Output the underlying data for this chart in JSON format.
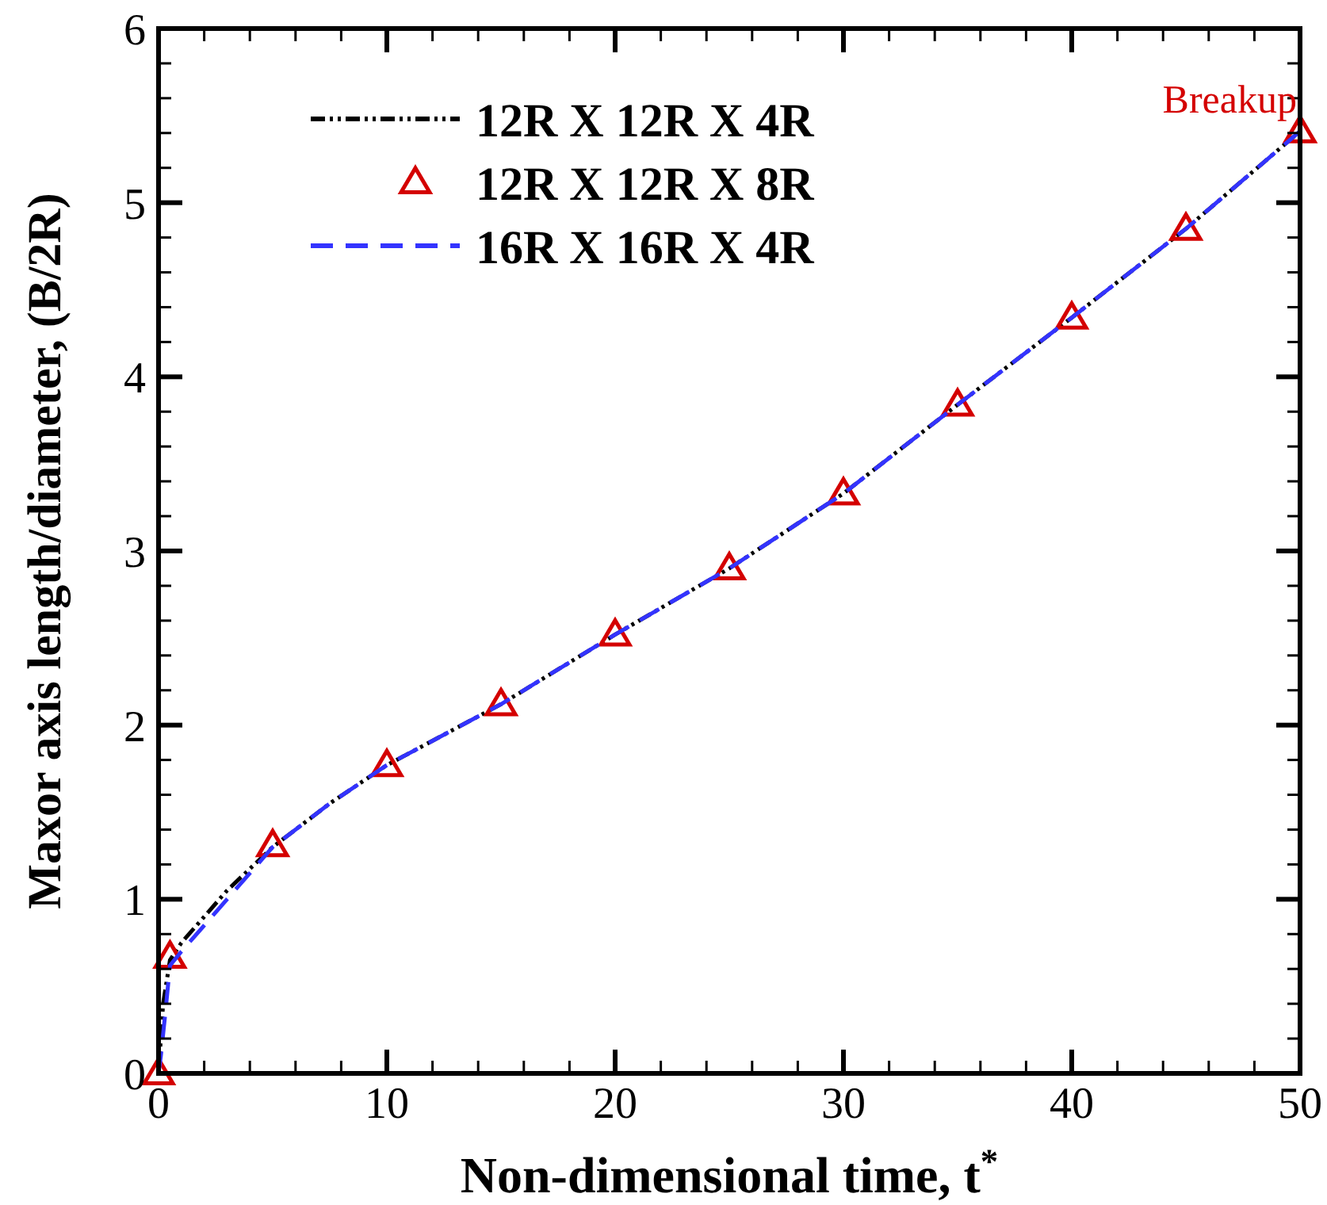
{
  "chart_data": {
    "type": "line",
    "xlabel": "Non-dimensional time, t$^{*}$",
    "ylabel": "Maxor axis length/diameter, (B/2R)",
    "xlim": [
      0,
      50
    ],
    "ylim": [
      0,
      6
    ],
    "xticks": [
      0,
      {
        "value": 2,
        "label": null
      },
      {
        "value": 4,
        "label": null
      },
      {
        "value": 6,
        "label": null
      },
      {
        "value": 8,
        "label": null
      },
      10,
      {
        "value": 12,
        "label": null
      },
      {
        "value": 14,
        "label": null
      },
      {
        "value": 16,
        "label": null
      },
      {
        "value": 18,
        "label": null
      },
      20,
      {
        "value": 22,
        "label": null
      },
      {
        "value": 24,
        "label": null
      },
      {
        "value": 26,
        "label": null
      },
      {
        "value": 28,
        "label": null
      },
      30,
      {
        "value": 32,
        "label": null
      },
      {
        "value": 34,
        "label": null
      },
      {
        "value": 36,
        "label": null
      },
      {
        "value": 38,
        "label": null
      },
      40,
      {
        "value": 42,
        "label": null
      },
      {
        "value": 44,
        "label": null
      },
      {
        "value": 46,
        "label": null
      },
      {
        "value": 48,
        "label": null
      },
      50
    ],
    "yticks": [
      0,
      {
        "value": 0.2,
        "label": null
      },
      {
        "value": 0.4,
        "label": null
      },
      {
        "value": 0.6,
        "label": null
      },
      {
        "value": 0.8,
        "label": null
      },
      1,
      {
        "value": 1.2,
        "label": null
      },
      {
        "value": 1.4,
        "label": null
      },
      {
        "value": 1.6,
        "label": null
      },
      {
        "value": 1.8,
        "label": null
      },
      2,
      {
        "value": 2.2,
        "label": null
      },
      {
        "value": 2.4,
        "label": null
      },
      {
        "value": 2.6,
        "label": null
      },
      {
        "value": 2.8,
        "label": null
      },
      3,
      {
        "value": 3.2,
        "label": null
      },
      {
        "value": 3.4,
        "label": null
      },
      {
        "value": 3.6,
        "label": null
      },
      {
        "value": 3.8,
        "label": null
      },
      4,
      {
        "value": 4.2,
        "label": null
      },
      {
        "value": 4.4,
        "label": null
      },
      {
        "value": 4.6,
        "label": null
      },
      {
        "value": 4.8,
        "label": null
      },
      5,
      {
        "value": 5.2,
        "label": null
      },
      {
        "value": 5.4,
        "label": null
      },
      {
        "value": 5.6,
        "label": null
      },
      {
        "value": 5.8,
        "label": null
      },
      6
    ],
    "legend": "top left",
    "grid": false,
    "series": [
      {
        "name": "12R X 12R X 4R",
        "color": "#000000",
        "line_style": "dotted",
        "marker": "none",
        "x": [
          0,
          0.2,
          0.5,
          1,
          2,
          3,
          5,
          7.5,
          10,
          15,
          20,
          25,
          30,
          35,
          40,
          45,
          50
        ],
        "values": [
          0,
          0.4,
          0.65,
          0.75,
          0.9,
          1.05,
          1.3,
          1.55,
          1.77,
          2.12,
          2.52,
          2.9,
          3.33,
          3.84,
          4.34,
          4.85,
          5.41
        ]
      },
      {
        "name": "12R X 12R X 8R",
        "type": "scatter",
        "color": "#d40000",
        "marker": "triangle",
        "x": [
          0,
          0.5,
          5,
          10,
          15,
          20,
          25,
          30,
          35,
          40,
          45,
          50
        ],
        "values": [
          0,
          0.67,
          1.31,
          1.77,
          2.12,
          2.52,
          2.9,
          3.33,
          3.84,
          4.34,
          4.85,
          5.41
        ]
      },
      {
        "name": "16R X 16R X 4R",
        "color": "#3333ff",
        "line_style": "dashed",
        "marker": "none",
        "x": [
          0,
          0.1,
          0.3,
          0.5,
          1,
          2,
          3,
          5,
          7.5,
          10,
          15,
          20,
          25,
          30,
          35,
          40,
          45,
          50
        ],
        "values": [
          0,
          0.1,
          0.35,
          0.62,
          0.7,
          0.85,
          1.0,
          1.3,
          1.55,
          1.77,
          2.12,
          2.52,
          2.9,
          3.33,
          3.84,
          4.34,
          4.85,
          5.41
        ]
      }
    ],
    "annotations": [
      {
        "text": "Breakup",
        "x": 50,
        "y": 5.41
      }
    ]
  }
}
